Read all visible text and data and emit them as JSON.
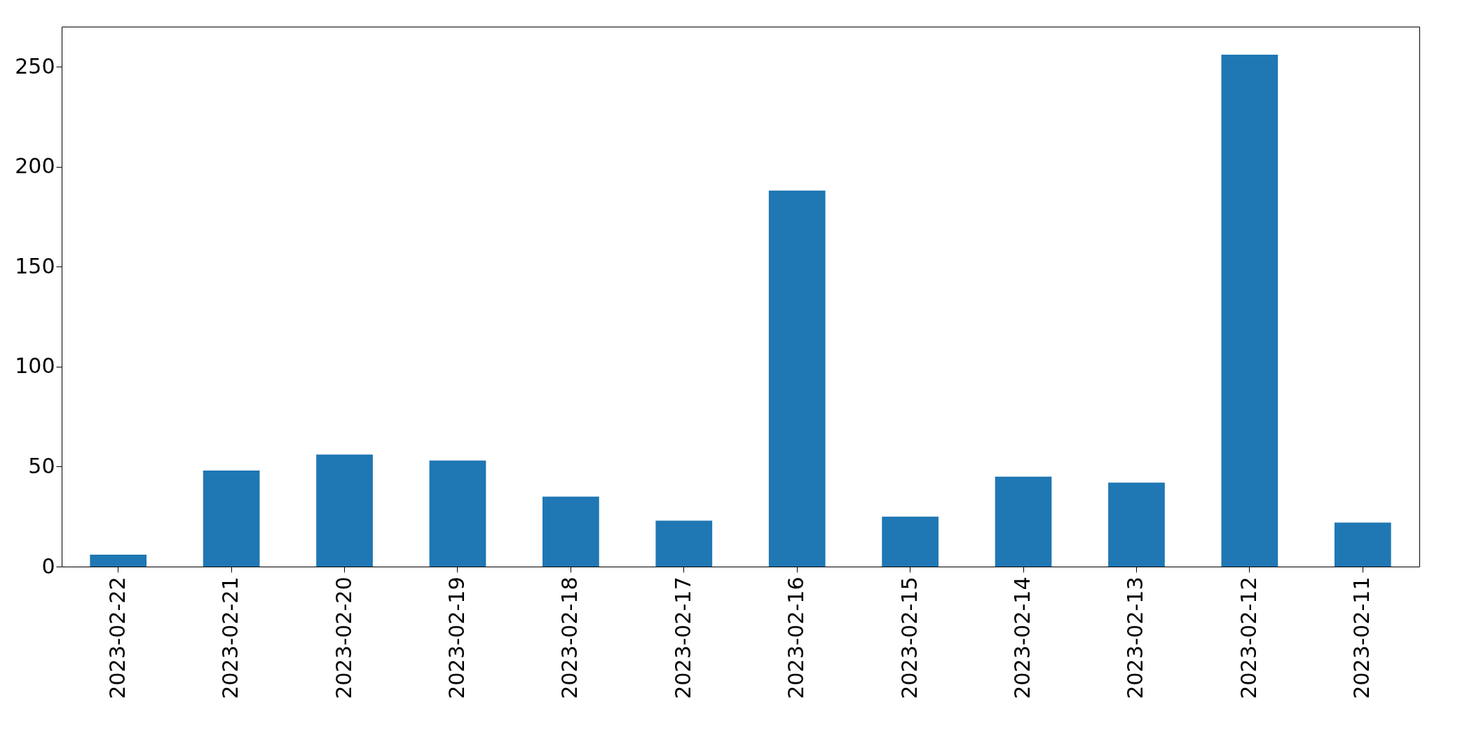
{
  "chart_data": {
    "type": "bar",
    "categories": [
      "2023-02-22",
      "2023-02-21",
      "2023-02-20",
      "2023-02-19",
      "2023-02-18",
      "2023-02-17",
      "2023-02-16",
      "2023-02-15",
      "2023-02-14",
      "2023-02-13",
      "2023-02-12",
      "2023-02-11"
    ],
    "values": [
      6,
      48,
      56,
      53,
      35,
      23,
      188,
      25,
      45,
      42,
      256,
      22
    ],
    "color": "#1f77b4",
    "ylim": [
      0,
      270
    ],
    "yticks": [
      0,
      50,
      100,
      150,
      200,
      250
    ]
  }
}
